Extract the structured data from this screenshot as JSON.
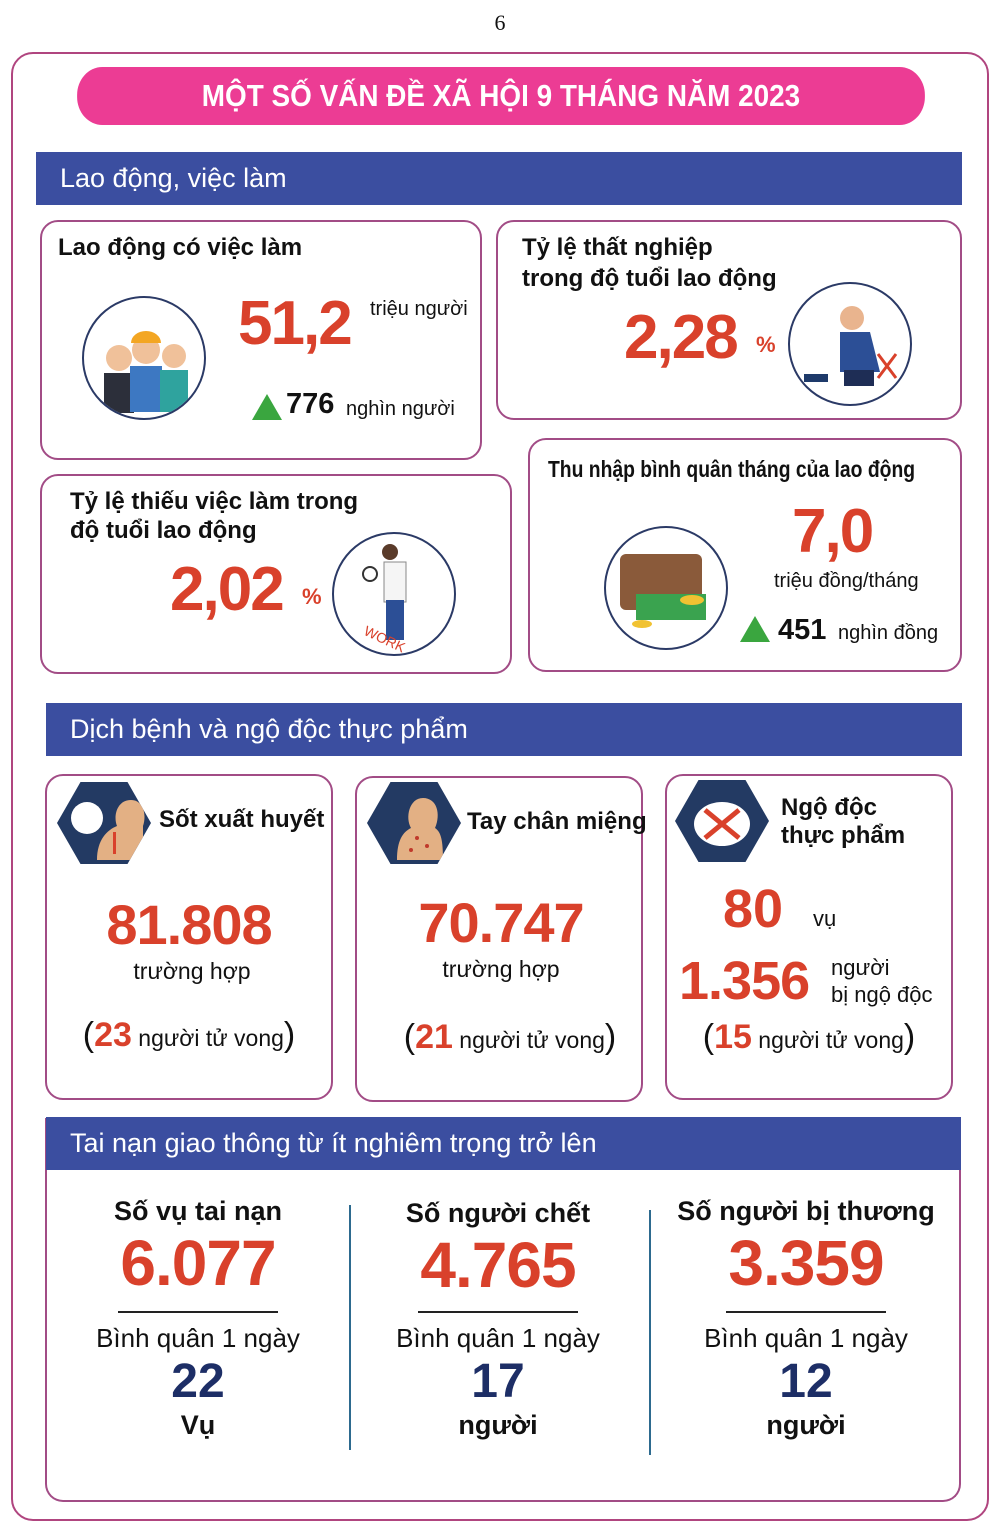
{
  "page_number": "6",
  "title": "MỘT SỐ VẤN ĐỀ XÃ HỘI 9 THÁNG NĂM 2023",
  "colors": {
    "title_bg": "#ec3c94",
    "section_bg": "#3b4ea0",
    "value": "#d9412b",
    "up_arrow": "#3aa63f",
    "border": "#a24c86"
  },
  "labor": {
    "heading": "Lao động, việc làm",
    "employed": {
      "label": "Lao động có việc làm",
      "value": "51,2",
      "unit": "triệu người",
      "change": "776",
      "change_unit": "nghìn người",
      "icon": "workers-icon"
    },
    "unemployment": {
      "label_line1": "Tỷ lệ thất nghiệp",
      "label_line2": "trong độ tuổi lao động",
      "value": "2,28",
      "unit": "%",
      "icon": "unemployed-man-icon"
    },
    "underemployment": {
      "label_line1": "Tỷ lệ thiếu việc làm trong",
      "label_line2": "độ tuổi lao động",
      "value": "2,02",
      "unit": "%",
      "icon": "job-search-icon",
      "icon_text": "WORK"
    },
    "income": {
      "label": "Thu nhập bình quân tháng của lao động",
      "value": "7,0",
      "unit": "triệu đồng/tháng",
      "change": "451",
      "change_unit": "nghìn đồng",
      "icon": "wallet-money-icon"
    }
  },
  "disease": {
    "heading": "Dịch bệnh và ngộ độc thực phẩm",
    "cards": [
      {
        "label": "Sốt xuất huyết",
        "value": "81.808",
        "unit": "trường hợp",
        "deaths": "23",
        "deaths_label": "người tử vong",
        "icon": "dengue-fever-icon"
      },
      {
        "label": "Tay chân miệng",
        "value": "70.747",
        "unit": "trường hợp",
        "deaths": "21",
        "deaths_label": "người tử vong",
        "icon": "hand-foot-mouth-icon"
      },
      {
        "label_line1": "Ngộ độc",
        "label_line2": "thực phẩm",
        "cases": "80",
        "cases_unit": "vụ",
        "people": "1.356",
        "people_unit_line1": "người",
        "people_unit_line2": "bị ngộ độc",
        "deaths": "15",
        "deaths_label": "người tử vong",
        "icon": "food-poisoning-icon"
      }
    ]
  },
  "traffic": {
    "heading": "Tai nạn giao thông từ ít nghiêm trọng trở lên",
    "columns": [
      {
        "label": "Số vụ tai nạn",
        "value": "6.077",
        "avg_label": "Bình quân 1 ngày",
        "avg": "22",
        "avg_unit": "Vụ"
      },
      {
        "label": "Số người chết",
        "value": "4.765",
        "avg_label": "Bình quân 1 ngày",
        "avg": "17",
        "avg_unit": "người"
      },
      {
        "label": "Số người bị thương",
        "value": "3.359",
        "avg_label": "Bình quân 1 ngày",
        "avg": "12",
        "avg_unit": "người"
      }
    ]
  }
}
